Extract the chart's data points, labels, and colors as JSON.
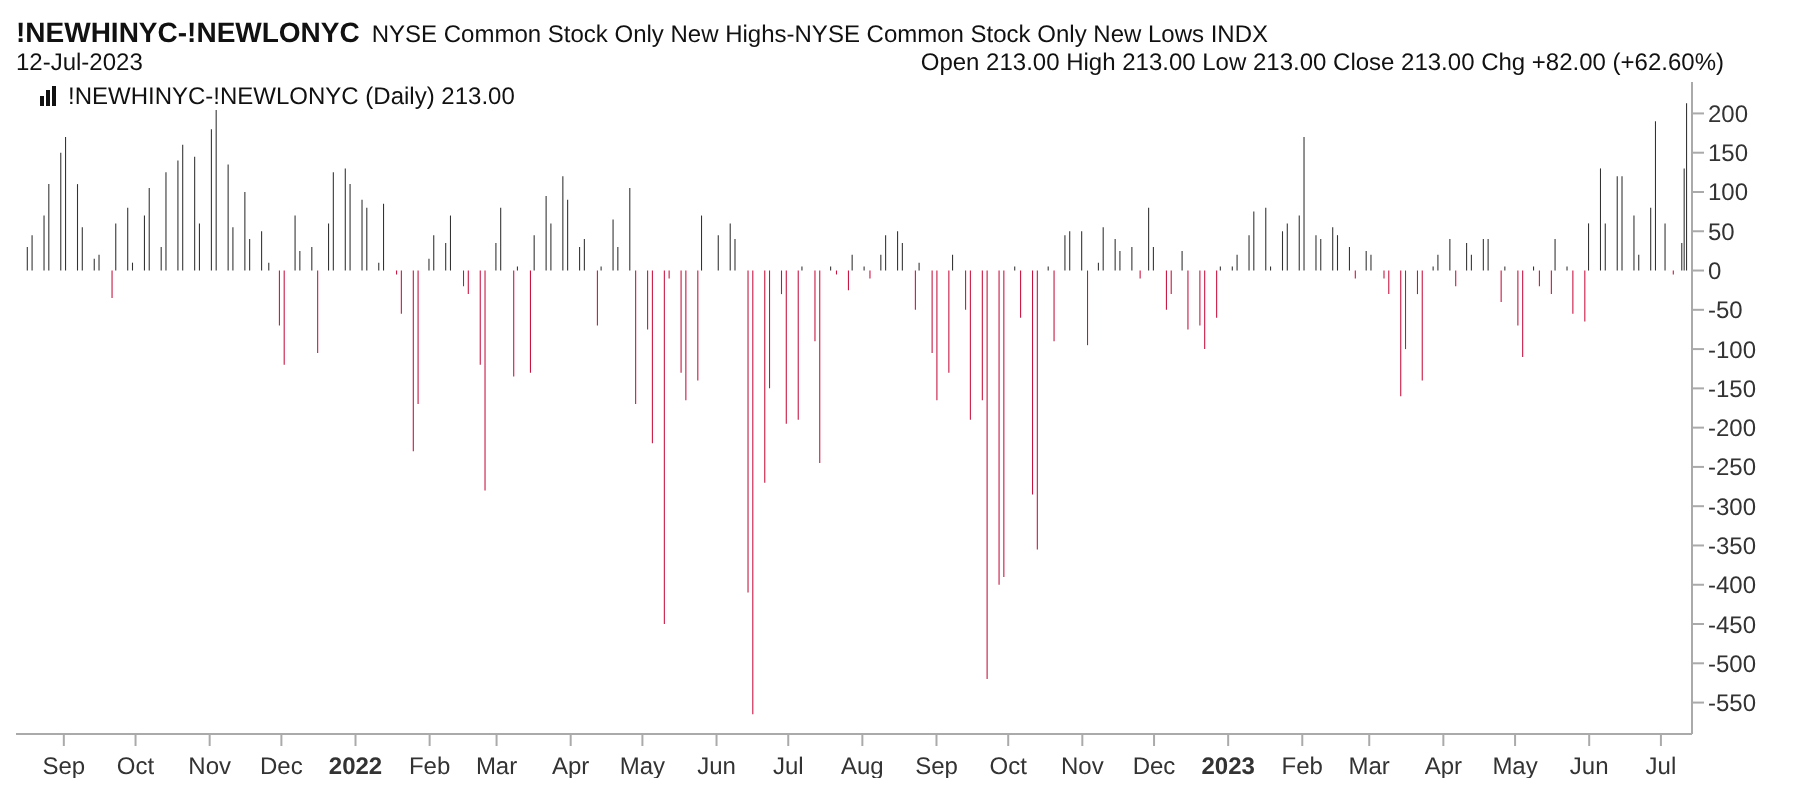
{
  "chart_data": {
    "type": "bar",
    "title": "!NEWHINYC-!NEWLONYC",
    "subtitle": "NYSE Common Stock Only New Highs-NYSE Common Stock Only New Lows INDX",
    "annotations": [
      "12-Jul-2023",
      "Open 213.00  High 213.00  Low 213.00  Close 213.00  Chg +82.00 (+62.60%)",
      "!NEWHINYC-!NEWLONYC (Daily) 213.00"
    ],
    "xlim": [
      "2021-08-12",
      "2023-07-14"
    ],
    "xticks": [
      {
        "value": "2021-09-01",
        "label": "Sep"
      },
      {
        "value": "2021-10-01",
        "label": "Oct"
      },
      {
        "value": "2021-11-01",
        "label": "Nov"
      },
      {
        "value": "2021-12-01",
        "label": "Dec"
      },
      {
        "value": "2022-01-01",
        "label": "2022"
      },
      {
        "value": "2022-02-01",
        "label": "Feb"
      },
      {
        "value": "2022-03-01",
        "label": "Mar"
      },
      {
        "value": "2022-04-01",
        "label": "Apr"
      },
      {
        "value": "2022-05-01",
        "label": "May"
      },
      {
        "value": "2022-06-01",
        "label": "Jun"
      },
      {
        "value": "2022-07-01",
        "label": "Jul"
      },
      {
        "value": "2022-08-01",
        "label": "Aug"
      },
      {
        "value": "2022-09-01",
        "label": "Sep"
      },
      {
        "value": "2022-10-01",
        "label": "Oct"
      },
      {
        "value": "2022-11-01",
        "label": "Nov"
      },
      {
        "value": "2022-12-01",
        "label": "Dec"
      },
      {
        "value": "2023-01-01",
        "label": "2023"
      },
      {
        "value": "2023-02-01",
        "label": "Feb"
      },
      {
        "value": "2023-03-01",
        "label": "Mar"
      },
      {
        "value": "2023-04-01",
        "label": "Apr"
      },
      {
        "value": "2023-05-01",
        "label": "May"
      },
      {
        "value": "2023-06-01",
        "label": "Jun"
      },
      {
        "value": "2023-07-01",
        "label": "Jul"
      }
    ],
    "ylim": [
      -590,
      240
    ],
    "yticks": [
      -550,
      -500,
      -450,
      -400,
      -350,
      -300,
      -250,
      -200,
      -150,
      -100,
      -50,
      0,
      50,
      100,
      150,
      200
    ],
    "grid": false,
    "legend": false,
    "series": [
      {
        "color": "#333333",
        "x": [
          "2021-08-17",
          "2021-08-19",
          "2021-08-24",
          "2021-08-26",
          "2021-08-31",
          "2021-09-02",
          "2021-09-07",
          "2021-09-09",
          "2021-09-14",
          "2021-09-16",
          "2021-09-23",
          "2021-09-28",
          "2021-09-30",
          "2021-10-05",
          "2021-10-07",
          "2021-10-12",
          "2021-10-14",
          "2021-10-19",
          "2021-10-21",
          "2021-10-26",
          "2021-10-28",
          "2021-11-02",
          "2021-11-04",
          "2021-11-09",
          "2021-11-11",
          "2021-11-16",
          "2021-11-18",
          "2021-11-23",
          "2021-11-26",
          "2021-12-07",
          "2021-12-09",
          "2021-12-14",
          "2021-12-21",
          "2021-12-23",
          "2021-12-28",
          "2021-12-30",
          "2022-01-04",
          "2022-01-06",
          "2022-01-11",
          "2022-01-13",
          "2022-02-01",
          "2022-02-03",
          "2022-02-08",
          "2022-02-10",
          "2022-03-01",
          "2022-03-03",
          "2022-03-10",
          "2022-03-17",
          "2022-03-22",
          "2022-03-24",
          "2022-03-29",
          "2022-03-31",
          "2022-04-05",
          "2022-04-07",
          "2022-04-14",
          "2022-04-19",
          "2022-04-21",
          "2022-04-26",
          "2022-05-26",
          "2022-06-02",
          "2022-06-07",
          "2022-06-09",
          "2022-07-07",
          "2022-07-19",
          "2022-07-28",
          "2022-08-02",
          "2022-08-09",
          "2022-08-11",
          "2022-08-16",
          "2022-08-18",
          "2022-08-25",
          "2022-09-08",
          "2022-10-04",
          "2022-10-18",
          "2022-10-25",
          "2022-10-27",
          "2022-11-01",
          "2022-11-08",
          "2022-11-10",
          "2022-11-15",
          "2022-11-17",
          "2022-11-22",
          "2022-11-29",
          "2022-12-01",
          "2022-12-13",
          "2022-12-29",
          "2023-01-03",
          "2023-01-05",
          "2023-01-10",
          "2023-01-12",
          "2023-01-17",
          "2023-01-19",
          "2023-01-24",
          "2023-01-26",
          "2023-01-31",
          "2023-02-02",
          "2023-02-07",
          "2023-02-09",
          "2023-02-14",
          "2023-02-16",
          "2023-02-21",
          "2023-02-28",
          "2023-03-02",
          "2023-03-28",
          "2023-03-30",
          "2023-04-04",
          "2023-04-11",
          "2023-04-13",
          "2023-04-18",
          "2023-04-20",
          "2023-04-27",
          "2023-05-09",
          "2023-05-18",
          "2023-05-23",
          "2023-06-01",
          "2023-06-06",
          "2023-06-08",
          "2023-06-13",
          "2023-06-15",
          "2023-06-20",
          "2023-06-22",
          "2023-06-27",
          "2023-06-29",
          "2023-07-03",
          "2023-07-10",
          "2023-07-11",
          "2023-07-12"
        ],
        "values": [
          30,
          45,
          70,
          110,
          150,
          170,
          110,
          55,
          15,
          20,
          60,
          80,
          10,
          70,
          105,
          30,
          125,
          140,
          160,
          145,
          60,
          180,
          210,
          135,
          55,
          100,
          40,
          50,
          10,
          70,
          25,
          30,
          60,
          125,
          130,
          110,
          90,
          80,
          10,
          85,
          15,
          45,
          35,
          70,
          35,
          80,
          5,
          45,
          95,
          60,
          120,
          90,
          30,
          40,
          5,
          65,
          30,
          105,
          70,
          45,
          60,
          40,
          5,
          5,
          20,
          5,
          20,
          45,
          50,
          35,
          10,
          20,
          5,
          5,
          45,
          50,
          50,
          10,
          55,
          40,
          25,
          30,
          80,
          30,
          25,
          5,
          5,
          20,
          45,
          75,
          80,
          5,
          50,
          60,
          70,
          170,
          45,
          40,
          55,
          45,
          30,
          25,
          20,
          5,
          20,
          40,
          35,
          20,
          40,
          40,
          5,
          5,
          40,
          5,
          60,
          130,
          60,
          120,
          120,
          70,
          20,
          80,
          190,
          60,
          35,
          130,
          213
        ]
      },
      {
        "color": "#c8133f",
        "x": [
          "2021-09-21",
          "2021-11-30",
          "2021-12-02",
          "2021-12-16",
          "2022-01-18",
          "2022-01-20",
          "2022-01-25",
          "2022-01-27",
          "2022-02-15",
          "2022-02-17",
          "2022-02-22",
          "2022-02-24",
          "2022-03-08",
          "2022-03-15",
          "2022-04-12",
          "2022-04-28",
          "2022-05-03",
          "2022-05-05",
          "2022-05-10",
          "2022-05-12",
          "2022-05-17",
          "2022-05-19",
          "2022-05-24",
          "2022-06-14",
          "2022-06-16",
          "2022-06-21",
          "2022-06-23",
          "2022-06-28",
          "2022-06-30",
          "2022-07-05",
          "2022-07-12",
          "2022-07-14",
          "2022-07-21",
          "2022-07-26",
          "2022-08-04",
          "2022-08-23",
          "2022-08-30",
          "2022-09-01",
          "2022-09-06",
          "2022-09-13",
          "2022-09-15",
          "2022-09-20",
          "2022-09-22",
          "2022-09-27",
          "2022-09-29",
          "2022-10-06",
          "2022-10-11",
          "2022-10-13",
          "2022-10-20",
          "2022-11-03",
          "2022-11-25",
          "2022-12-06",
          "2022-12-08",
          "2022-12-15",
          "2022-12-20",
          "2022-12-22",
          "2022-12-27",
          "2023-02-23",
          "2023-03-07",
          "2023-03-09",
          "2023-03-14",
          "2023-03-16",
          "2023-03-21",
          "2023-03-23",
          "2023-04-06",
          "2023-04-25",
          "2023-05-02",
          "2023-05-04",
          "2023-05-11",
          "2023-05-16",
          "2023-05-25",
          "2023-05-30",
          "2023-07-06"
        ],
        "values": [
          -35,
          -70,
          -120,
          -105,
          -5,
          -55,
          -230,
          -170,
          -20,
          -30,
          -120,
          -280,
          -135,
          -130,
          -70,
          -170,
          -75,
          -220,
          -450,
          -10,
          -130,
          -165,
          -140,
          -410,
          -565,
          -270,
          -150,
          -30,
          -195,
          -190,
          -90,
          -245,
          -5,
          -25,
          -10,
          -50,
          -105,
          -165,
          -130,
          -50,
          -190,
          -165,
          -520,
          -400,
          -390,
          -60,
          -285,
          -355,
          -90,
          -95,
          -10,
          -50,
          -30,
          -75,
          -70,
          -100,
          -60,
          -10,
          -10,
          -30,
          -160,
          -100,
          -30,
          -140,
          -20,
          -40,
          -70,
          -110,
          -20,
          -30,
          -55,
          -65,
          -5
        ]
      }
    ]
  }
}
